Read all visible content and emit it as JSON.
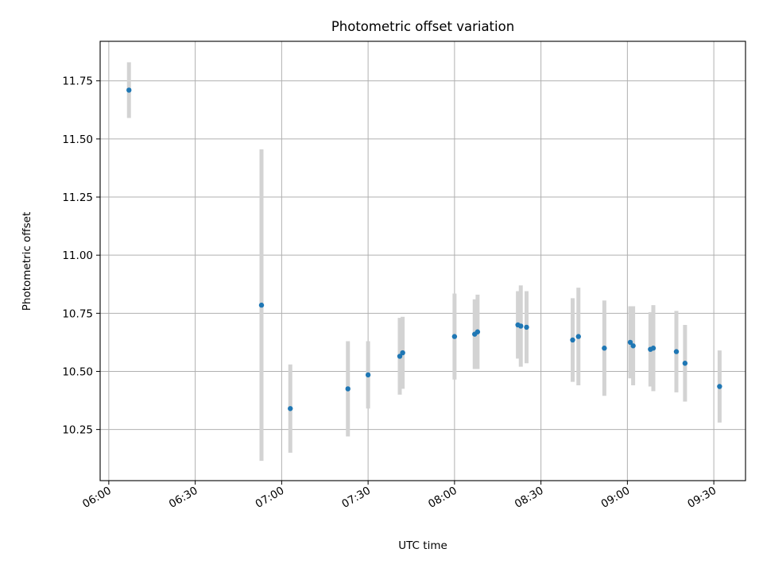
{
  "chart_data": {
    "type": "scatter",
    "title": "Photometric offset variation",
    "xlabel": "UTC time",
    "ylabel": "Photometric offset",
    "grid": true,
    "x_axis_kind": "time",
    "xlim": [
      "05:57",
      "09:41"
    ],
    "ylim": [
      10.03,
      11.92
    ],
    "x_ticks": [
      "06:00",
      "06:30",
      "07:00",
      "07:30",
      "08:00",
      "08:30",
      "09:00",
      "09:30"
    ],
    "y_ticks": [
      10.25,
      10.5,
      10.75,
      11.0,
      11.25,
      11.5,
      11.75
    ],
    "y_tick_labels": [
      "10.25",
      "10.50",
      "10.75",
      "11.00",
      "11.25",
      "11.50",
      "11.75"
    ],
    "marker_color": "#1f77b4",
    "errorbar_color": "#d3d3d3",
    "points": [
      {
        "x": "06:07",
        "y": 11.71,
        "err": 0.12
      },
      {
        "x": "06:53",
        "y": 10.785,
        "err": 0.67
      },
      {
        "x": "07:03",
        "y": 10.34,
        "err": 0.19
      },
      {
        "x": "07:23",
        "y": 10.425,
        "err": 0.205
      },
      {
        "x": "07:30",
        "y": 10.485,
        "err": 0.145
      },
      {
        "x": "07:41",
        "y": 10.565,
        "err": 0.165
      },
      {
        "x": "07:42",
        "y": 10.58,
        "err": 0.155
      },
      {
        "x": "08:00",
        "y": 10.65,
        "err": 0.185
      },
      {
        "x": "08:07",
        "y": 10.66,
        "err": 0.15
      },
      {
        "x": "08:08",
        "y": 10.67,
        "err": 0.16
      },
      {
        "x": "08:22",
        "y": 10.7,
        "err": 0.145
      },
      {
        "x": "08:23",
        "y": 10.695,
        "err": 0.175
      },
      {
        "x": "08:25",
        "y": 10.69,
        "err": 0.155
      },
      {
        "x": "08:41",
        "y": 10.635,
        "err": 0.18
      },
      {
        "x": "08:43",
        "y": 10.65,
        "err": 0.21
      },
      {
        "x": "08:52",
        "y": 10.6,
        "err": 0.205
      },
      {
        "x": "09:01",
        "y": 10.625,
        "err": 0.155
      },
      {
        "x": "09:02",
        "y": 10.61,
        "err": 0.17
      },
      {
        "x": "09:08",
        "y": 10.595,
        "err": 0.16
      },
      {
        "x": "09:09",
        "y": 10.6,
        "err": 0.185
      },
      {
        "x": "09:17",
        "y": 10.585,
        "err": 0.175
      },
      {
        "x": "09:20",
        "y": 10.535,
        "err": 0.165
      },
      {
        "x": "09:32",
        "y": 10.435,
        "err": 0.155
      }
    ]
  }
}
